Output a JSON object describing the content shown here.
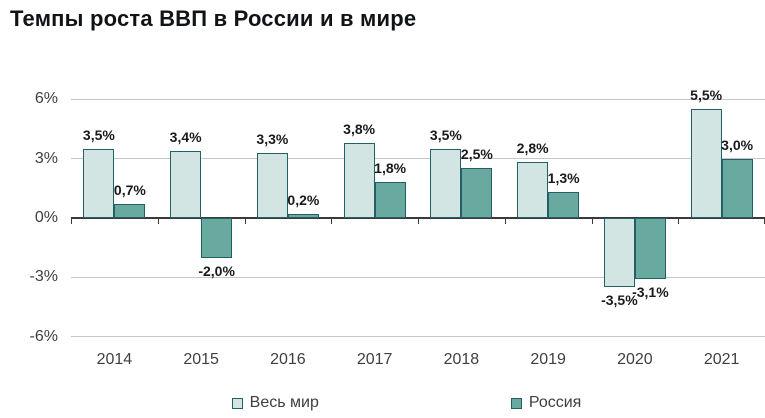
{
  "chart_data": {
    "type": "bar",
    "title": "Темпы роста ВВП в России и в мире",
    "categories": [
      "2014",
      "2015",
      "2016",
      "2017",
      "2018",
      "2019",
      "2020",
      "2021"
    ],
    "series": [
      {
        "name": "Весь мир",
        "color": "#d3e5e2",
        "values": [
          3.5,
          3.4,
          3.3,
          3.8,
          3.5,
          2.8,
          -3.5,
          5.5
        ],
        "labels": [
          "3,5%",
          "3,4%",
          "3,3%",
          "3,8%",
          "3,5%",
          "2,8%",
          "-3,5%",
          "5,5%"
        ]
      },
      {
        "name": "Россия",
        "color": "#69aaa0",
        "values": [
          0.7,
          -2.0,
          0.2,
          1.8,
          2.5,
          1.3,
          -3.1,
          3.0
        ],
        "labels": [
          "0,7%",
          "-2,0%",
          "0,2%",
          "1,8%",
          "2,5%",
          "1,3%",
          "-3,1%",
          "3,0%"
        ]
      }
    ],
    "y_ticks": [
      {
        "label": "6%",
        "value": 6
      },
      {
        "label": "3%",
        "value": 3
      },
      {
        "label": "0%",
        "value": 0
      },
      {
        "label": "-3%",
        "value": -3
      },
      {
        "label": "-6%",
        "value": -6
      }
    ],
    "ylim": [
      -6,
      6
    ],
    "grid": true,
    "legend_position": "bottom",
    "colors": {
      "bar_border": "#245f66",
      "gridline": "#c6c6c6",
      "axis_line": "#3a3a3a"
    }
  }
}
